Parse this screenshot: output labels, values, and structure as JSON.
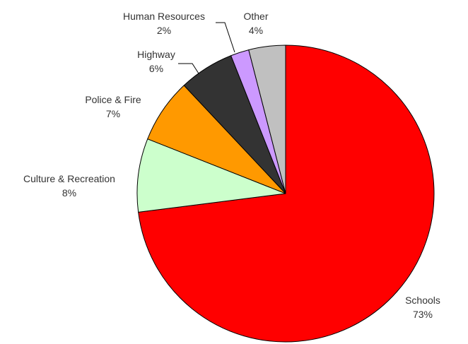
{
  "chart_data": {
    "type": "pie",
    "title": "",
    "slices": [
      {
        "label": "Schools",
        "value": 73,
        "display": "73%",
        "color": "#ff0000"
      },
      {
        "label": "Culture & Recreation",
        "value": 8,
        "display": "8%",
        "color": "#ccffcc"
      },
      {
        "label": "Police & Fire",
        "value": 7,
        "display": "7%",
        "color": "#ff9900"
      },
      {
        "label": "Highway",
        "value": 6,
        "display": "6%",
        "color": "#333333"
      },
      {
        "label": "Human Resources",
        "value": 2,
        "display": "2%",
        "color": "#cc99ff"
      },
      {
        "label": "Other",
        "value": 4,
        "display": "4%",
        "color": "#c0c0c0"
      }
    ],
    "start_angle_deg": 0,
    "direction": "clockwise",
    "legend": "none",
    "labels": "outside with leader lines for small slices"
  }
}
